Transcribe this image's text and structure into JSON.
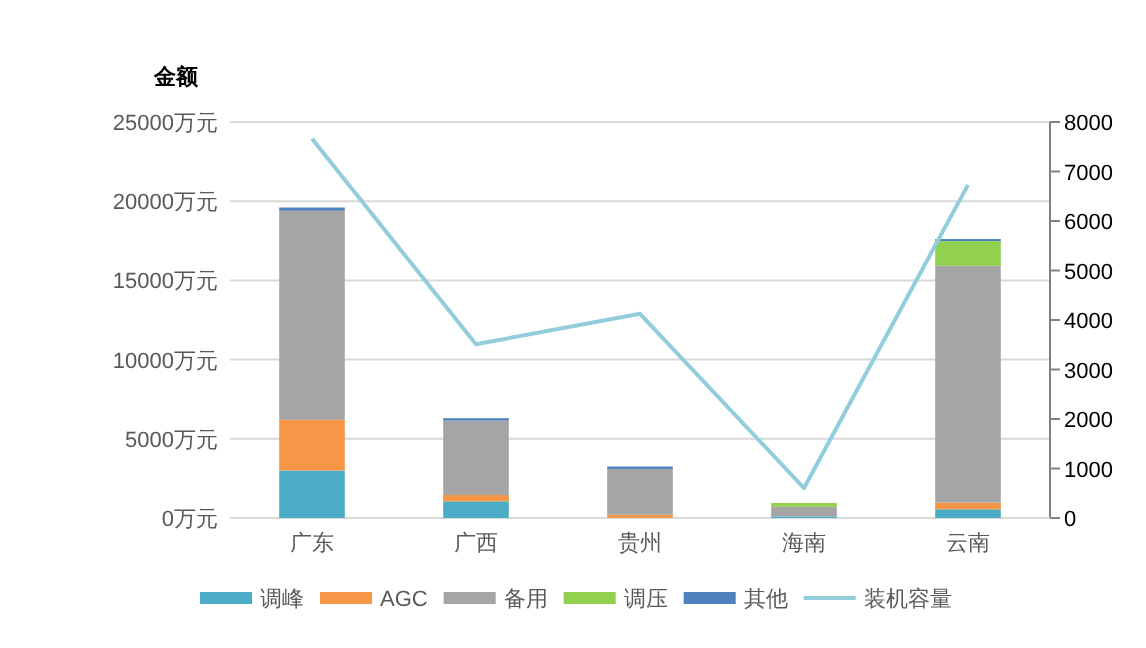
{
  "chart_data": {
    "type": "bar",
    "stacked": true,
    "ylabel": "金额",
    "categories": [
      "广东",
      "广西",
      "贵州",
      "海南",
      "云南"
    ],
    "series": [
      {
        "name": "调峰",
        "color": "#4bacc6",
        "values": [
          3000,
          1050,
          0,
          100,
          550
        ]
      },
      {
        "name": "AGC",
        "color": "#f79646",
        "values": [
          3200,
          400,
          200,
          0,
          420
        ]
      },
      {
        "name": "备用",
        "color": "#a5a5a5",
        "values": [
          13200,
          4700,
          2900,
          600,
          14950
        ]
      },
      {
        "name": "调压",
        "color": "#92d050",
        "values": [
          0,
          0,
          0,
          250,
          1560
        ]
      },
      {
        "name": "其他",
        "color": "#4f81bd",
        "values": [
          200,
          150,
          150,
          0,
          130
        ]
      },
      {
        "name": "装机容量",
        "color": "#92cddc",
        "type": "line",
        "axis": "y2",
        "values": [
          7660,
          3510,
          4125,
          605,
          6730
        ]
      }
    ],
    "ylim": [
      0,
      25000
    ],
    "yticks": [
      {
        "value": 0,
        "label": "0万元"
      },
      {
        "value": 5000,
        "label": "5000万元"
      },
      {
        "value": 10000,
        "label": "10000万元"
      },
      {
        "value": 15000,
        "label": "15000万元"
      },
      {
        "value": 20000,
        "label": "20000万元"
      },
      {
        "value": 25000,
        "label": "25000万元"
      }
    ],
    "y2lim": [
      0,
      8000
    ],
    "y2ticks": [
      0,
      1000,
      2000,
      3000,
      4000,
      5000,
      6000,
      7000,
      8000
    ],
    "grid": "y",
    "legend": "bottom"
  }
}
